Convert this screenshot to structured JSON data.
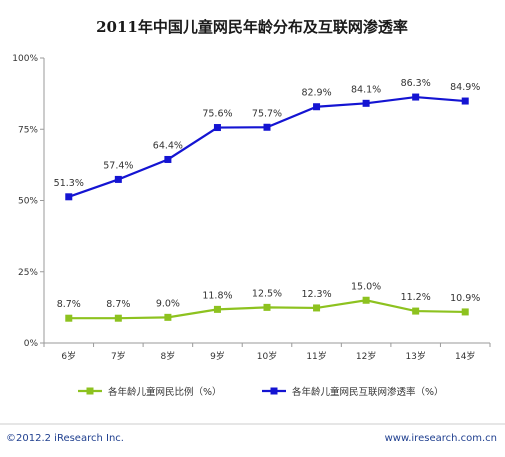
{
  "chart_data": {
    "type": "line",
    "title": "2011年中国儿童网民年龄分布及互联网渗透率",
    "categories": [
      "6岁",
      "7岁",
      "8岁",
      "9岁",
      "10岁",
      "11岁",
      "12岁",
      "13岁",
      "14岁"
    ],
    "yticks": [
      "0%",
      "25%",
      "50%",
      "75%",
      "100%"
    ],
    "ylim": [
      0,
      100
    ],
    "grid": false,
    "legend_position": "bottom",
    "series": [
      {
        "name": "各年龄儿童网民比例（%）",
        "color": "#8dc21f",
        "values": [
          8.7,
          8.7,
          9.0,
          11.8,
          12.5,
          12.3,
          15.0,
          11.2,
          10.9
        ],
        "labels": [
          "8.7%",
          "8.7%",
          "9.0%",
          "11.8%",
          "12.5%",
          "12.3%",
          "15.0%",
          "11.2%",
          "10.9%"
        ]
      },
      {
        "name": "各年龄儿童网民互联网渗透率（%）",
        "color": "#1414d2",
        "values": [
          51.3,
          57.4,
          64.4,
          75.6,
          75.7,
          82.9,
          84.1,
          86.3,
          84.9
        ],
        "labels": [
          "51.3%",
          "57.4%",
          "64.4%",
          "75.6%",
          "75.7%",
          "82.9%",
          "84.1%",
          "86.3%",
          "84.9%"
        ]
      }
    ]
  },
  "footer": {
    "left": "©2012.2 iResearch Inc.",
    "right": "www.iresearch.com.cn"
  }
}
